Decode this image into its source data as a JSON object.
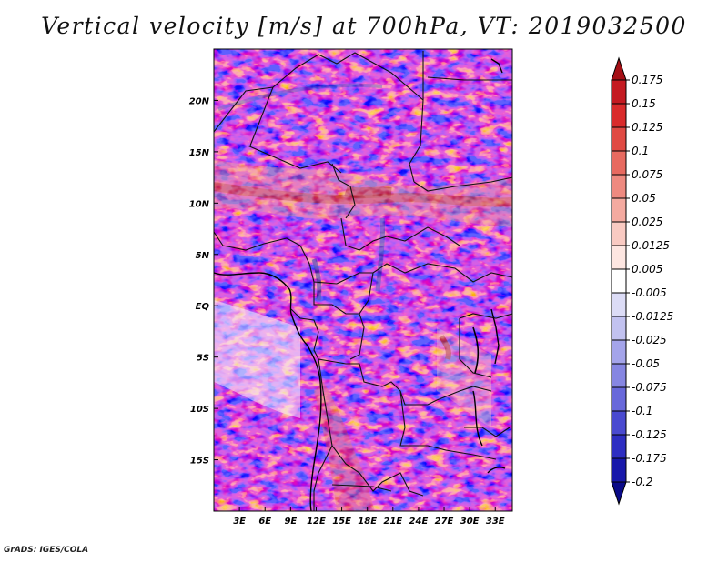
{
  "title": "Vertical velocity [m/s] at 700hPa, VT: 2019032500",
  "footer": "GrADS: IGES/COLA",
  "map": {
    "variable": "Vertical velocity",
    "units": "m/s",
    "level": "700hPa",
    "valid_time": "2019032500",
    "lon_range": [
      0,
      35
    ],
    "lat_range": [
      -20,
      25
    ],
    "lon_ticks": [
      "3E",
      "6E",
      "9E",
      "12E",
      "15E",
      "18E",
      "21E",
      "24E",
      "27E",
      "30E",
      "33E"
    ],
    "lon_tick_values": [
      3,
      6,
      9,
      12,
      15,
      18,
      21,
      24,
      27,
      30,
      33
    ],
    "lat_ticks": [
      "20N",
      "15N",
      "10N",
      "5N",
      "EQ",
      "5S",
      "10S",
      "15S"
    ],
    "lat_tick_values": [
      20,
      15,
      10,
      5,
      0,
      -5,
      -10,
      -15
    ]
  },
  "colorbar": {
    "levels": [
      "0.175",
      "0.15",
      "0.125",
      "0.1",
      "0.075",
      "0.05",
      "0.025",
      "0.0125",
      "0.005",
      "-0.005",
      "-0.0125",
      "-0.025",
      "-0.05",
      "-0.075",
      "-0.1",
      "-0.125",
      "-0.175",
      "-0.2"
    ],
    "colors": [
      "#a50f15",
      "#c41a21",
      "#d92b2b",
      "#e04a43",
      "#e76a60",
      "#ee8a80",
      "#f4aaa0",
      "#f9cac2",
      "#fde6e1",
      "#ffffff",
      "#dcdcf6",
      "#c2c2f0",
      "#a4a4ea",
      "#8686e2",
      "#6868da",
      "#4a4ad0",
      "#2e2ec2",
      "#1818aa",
      "#0a0a88"
    ]
  }
}
